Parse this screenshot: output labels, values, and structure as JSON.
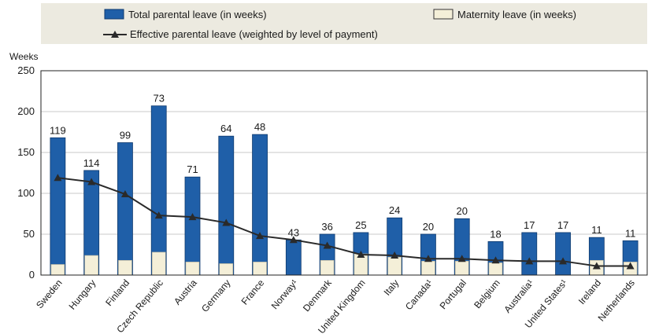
{
  "legend": {
    "total_label": "Total parental leave (in weeks)",
    "maternity_label": "Maternity leave (in weeks)",
    "effective_label": "Effective parental leave (weighted by level of payment)"
  },
  "colors": {
    "total": "#1f5fa8",
    "total_stroke": "#0f3a6e",
    "maternity": "#f4efd8",
    "line": "#2a2a2a"
  },
  "chart_data": {
    "type": "bar",
    "ylabel": "Weeks",
    "ylim": [
      0,
      250
    ],
    "yticks": [
      0,
      50,
      100,
      150,
      200,
      250
    ],
    "grid": true,
    "legend_position": "top",
    "categories": [
      "Sweden",
      "Hungary",
      "Finland",
      "Czech Republic",
      "Austria",
      "Germany",
      "France",
      "Norway",
      "Denmark",
      "United Kingdom",
      "Italy",
      "Canada",
      "Portugal",
      "Belgium",
      "Australia",
      "United States",
      "Ireland",
      "Netherlands"
    ],
    "category_display": [
      "Sweden",
      "Hungary",
      "Finland",
      "Czech Republic",
      "Austria",
      "Germany",
      "France",
      "Norway¹",
      "Denmark",
      "United Kingdom",
      "Italy",
      "Canada¹",
      "Portugal",
      "Belgium",
      "Australia¹",
      "United States¹",
      "Ireland",
      "Netherlands"
    ],
    "series": [
      {
        "name": "Total parental leave (in weeks)",
        "type": "bar",
        "values": [
          168,
          128,
          162,
          207,
          120,
          170,
          172,
          43,
          50,
          52,
          70,
          50,
          69,
          41,
          52,
          52,
          46,
          42
        ]
      },
      {
        "name": "Maternity leave (in weeks)",
        "type": "bar",
        "values": [
          13,
          24,
          18,
          28,
          16,
          14,
          16,
          0,
          18,
          26,
          22,
          17,
          17,
          15,
          0,
          0,
          18,
          16
        ]
      },
      {
        "name": "Effective parental leave (weighted by level of payment)",
        "type": "line",
        "values": [
          119,
          114,
          99,
          73,
          71,
          64,
          48,
          43,
          36,
          25,
          24,
          20,
          20,
          18,
          17,
          17,
          11,
          11
        ]
      }
    ],
    "data_labels": [
      "119",
      "114",
      "99",
      "73",
      "71",
      "64",
      "48",
      "43",
      "36",
      "25",
      "24",
      "20",
      "20",
      "18",
      "17",
      "17",
      "11",
      "11"
    ]
  }
}
